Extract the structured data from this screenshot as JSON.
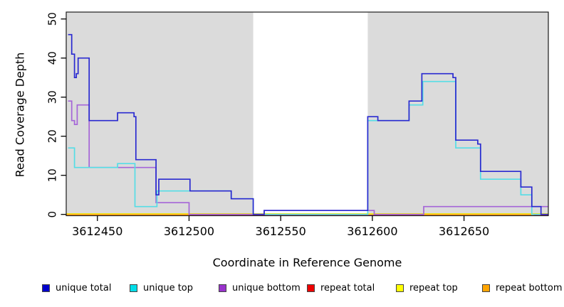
{
  "axes": {
    "x": {
      "title": "Coordinate in Reference Genome",
      "ticks": [
        {
          "label": "3612450",
          "value": 3612450
        },
        {
          "label": "3612500",
          "value": 3612500
        },
        {
          "label": "3612550",
          "value": 3612550
        },
        {
          "label": "3612600",
          "value": 3612600
        },
        {
          "label": "3612650",
          "value": 3612650
        }
      ]
    },
    "y": {
      "title": "Read Coverage Depth",
      "ticks": [
        {
          "label": "0",
          "value": 0
        },
        {
          "label": "10",
          "value": 10
        },
        {
          "label": "20",
          "value": 20
        },
        {
          "label": "30",
          "value": 30
        },
        {
          "label": "40",
          "value": 40
        },
        {
          "label": "50",
          "value": 50
        }
      ]
    }
  },
  "legend": {
    "items": [
      {
        "label": "unique total",
        "swatch": "#0000cc"
      },
      {
        "label": "unique top",
        "swatch": "#00dde8"
      },
      {
        "label": "unique bottom",
        "swatch": "#9933cc"
      },
      {
        "label": "repeat total",
        "swatch": "#ee0000"
      },
      {
        "label": "repeat top",
        "swatch": "#ffff00"
      },
      {
        "label": "repeat bottom",
        "swatch": "#ffa500"
      }
    ]
  },
  "chart_data": {
    "type": "line",
    "subtype": "step-coverage",
    "title": "",
    "xlabel": "Coordinate in Reference Genome",
    "ylabel": "Read Coverage Depth",
    "x_domain": [
      3612433,
      3612696
    ],
    "ylim": [
      0,
      51.5
    ],
    "grid": false,
    "legend_position": "bottom",
    "shaded_regions": [
      {
        "from": 3612433,
        "to": 3612535,
        "color": "#dbdbdb"
      },
      {
        "from": 3612597.5,
        "to": 3612696,
        "color": "#dbdbdb"
      }
    ],
    "series": [
      {
        "name": "repeat total",
        "color": "#cc4060",
        "dy": 1.3,
        "segments": [
          {
            "points": [
              [
                3612433,
                0
              ]
            ],
            "end": 3612696
          }
        ]
      },
      {
        "name": "repeat top",
        "color": "#f0e800",
        "dy": -0.7,
        "segments": [
          {
            "points": [
              [
                3612433,
                0
              ]
            ],
            "end": 3612696
          }
        ]
      },
      {
        "name": "repeat bottom",
        "color": "#ff9d1e",
        "dy": 0.5,
        "segments": [
          {
            "points": [
              [
                3612433,
                0
              ]
            ],
            "end": 3612500
          },
          {
            "points": [
              [
                3612628,
                0
              ]
            ],
            "end": 3612688
          }
        ]
      },
      {
        "name": "unique bottom",
        "color": "#a565d8",
        "dy": 0,
        "segments": [
          {
            "points": [
              [
                3612434,
                29
              ],
              [
                3612436,
                24
              ],
              [
                3612437.5,
                23
              ],
              [
                3612439,
                28
              ],
              [
                3612445.5,
                12
              ],
              [
                3612482,
                3
              ],
              [
                3612500,
                0
              ],
              [
                3612541,
                1
              ],
              [
                3612601,
                0
              ],
              [
                3612628,
                2
              ]
            ],
            "end": 3612696
          }
        ]
      },
      {
        "name": "unique top",
        "color": "#55dde6",
        "dy": 0,
        "segments": [
          {
            "points": [
              [
                3612434,
                17
              ],
              [
                3612437.5,
                12
              ],
              [
                3612461,
                13
              ],
              [
                3612470.5,
                2
              ],
              [
                3612482.5,
                6
              ],
              [
                3612523,
                4
              ],
              [
                3612535,
                0
              ],
              [
                3612597.5,
                24
              ],
              [
                3612620,
                28
              ],
              [
                3612627.5,
                34
              ],
              [
                3612645.5,
                17
              ],
              [
                3612659,
                9
              ],
              [
                3612681,
                5
              ],
              [
                3612687,
                0
              ]
            ],
            "end": 3612696
          }
        ]
      },
      {
        "name": "unique total",
        "color": "#2a2ad0",
        "dy": 0,
        "segments": [
          {
            "points": [
              [
                3612434,
                46
              ],
              [
                3612436,
                41
              ],
              [
                3612437.5,
                35
              ],
              [
                3612438.5,
                36
              ],
              [
                3612439.5,
                40
              ],
              [
                3612445.5,
                24
              ],
              [
                3612461,
                26
              ],
              [
                3612470,
                25
              ],
              [
                3612471,
                14
              ],
              [
                3612482,
                5
              ],
              [
                3612483.5,
                9
              ],
              [
                3612500.5,
                6
              ],
              [
                3612523,
                4
              ],
              [
                3612535,
                0
              ],
              [
                3612541,
                1
              ],
              [
                3612597.5,
                25
              ],
              [
                3612603,
                24
              ],
              [
                3612620,
                29
              ],
              [
                3612627,
                36
              ],
              [
                3612644,
                35
              ],
              [
                3612645.5,
                19
              ],
              [
                3612657.5,
                18
              ],
              [
                3612659,
                11
              ],
              [
                3612681,
                7
              ],
              [
                3612687,
                2
              ],
              [
                3612692,
                0
              ]
            ],
            "end": 3612696
          }
        ]
      }
    ]
  }
}
